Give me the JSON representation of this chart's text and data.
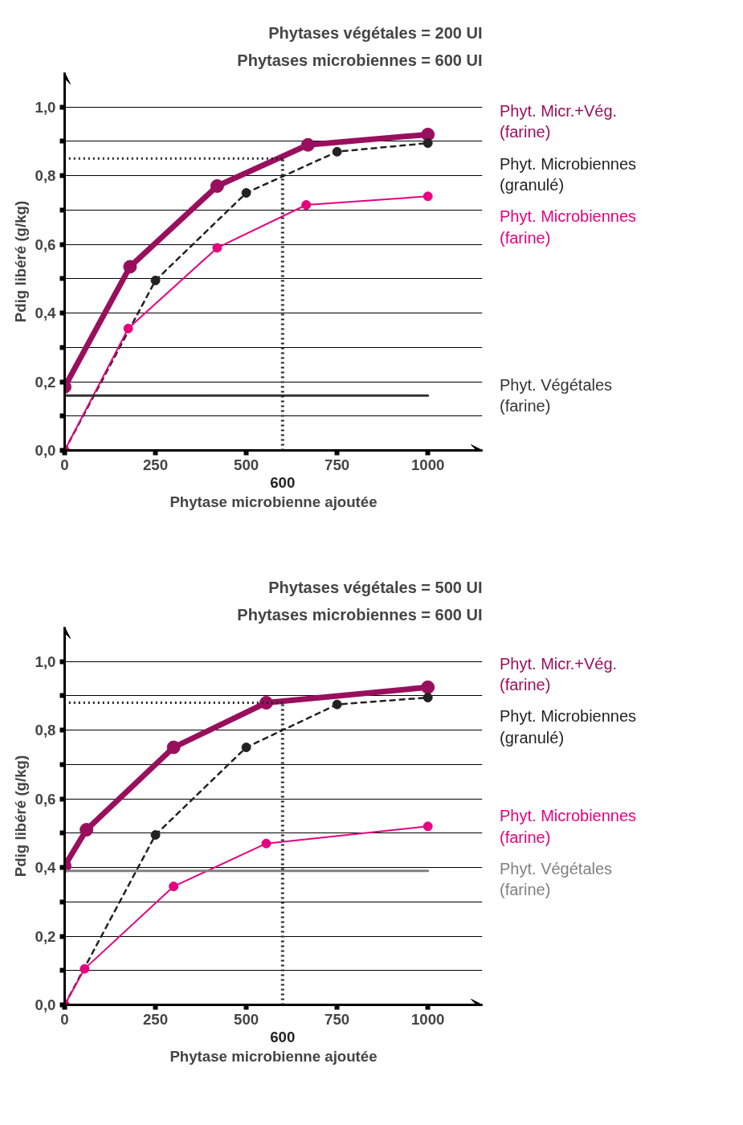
{
  "chart_data": [
    {
      "type": "line",
      "title": "Phytases végétales = 200 UI",
      "subtitle": "Phytases microbiennes = 600 UI",
      "xlabel": "Phytase microbienne ajoutée",
      "ylabel": "Pdig libéré (g/kg)",
      "xlim": [
        0,
        1150
      ],
      "ylim": [
        0,
        1.1
      ],
      "xticks": [
        0,
        {
          "value": 250,
          "label": "250"
        },
        500,
        750,
        1000
      ],
      "yticks": [
        {
          "value": 0,
          "label": "0,0"
        },
        {
          "value": 0.1,
          "label": null
        },
        {
          "value": 0.2,
          "label": "0,2"
        },
        {
          "value": 0.3,
          "label": null
        },
        {
          "value": 0.4,
          "label": "0,4"
        },
        {
          "value": 0.5,
          "label": null
        },
        {
          "value": 0.6,
          "label": "0,6"
        },
        {
          "value": 0.7,
          "label": null
        },
        {
          "value": 0.8,
          "label": "0,8"
        },
        {
          "value": 0.9,
          "label": null
        },
        {
          "value": 1.0,
          "label": "1,0"
        }
      ],
      "grid": "y",
      "legend": "right",
      "marker": "circle",
      "series": [
        {
          "name": "Phyt. Micr.+Vég. (farine)",
          "color": "#990f5d",
          "x": [
            0,
            180,
            420,
            670,
            1000
          ],
          "values": [
            0.185,
            0.535,
            0.77,
            0.89,
            0.92
          ]
        },
        {
          "name": "Phyt. Microbiennes (granulé)",
          "color": "#222222",
          "line_style": "dashed",
          "x": [
            0,
            250,
            500,
            750,
            1000
          ],
          "values": [
            0,
            0.495,
            0.75,
            0.87,
            0.895
          ]
        },
        {
          "name": "Phyt. Microbiennes (farine)",
          "color": "#e6007e",
          "x": [
            0,
            175,
            420,
            665,
            1000
          ],
          "values": [
            0,
            0.355,
            0.59,
            0.715,
            0.74
          ]
        },
        {
          "name": "Phyt. Végétales (farine)",
          "color": "#333333",
          "marker": "none",
          "x": [
            0,
            1000
          ],
          "values": [
            0.16,
            0.16
          ]
        }
      ],
      "ref_lines": [
        {
          "axis": "x",
          "value": 600,
          "label": "600",
          "line_style": "dotted",
          "color": "#222222"
        },
        {
          "axis": "y",
          "value": 0.85,
          "label": null,
          "line_style": "dotted",
          "color": "#222222"
        }
      ]
    },
    {
      "type": "line",
      "title": "Phytases végétales = 500 UI",
      "subtitle": "Phytases microbiennes = 600 UI",
      "xlabel": "Phytase microbienne ajoutée",
      "ylabel": "Pdig libéré (g/kg)",
      "xlim": [
        0,
        1150
      ],
      "ylim": [
        0,
        1.1
      ],
      "xticks": [
        0,
        250,
        500,
        750,
        1000
      ],
      "yticks": [
        {
          "value": 0,
          "label": "0,0"
        },
        {
          "value": 0.1,
          "label": null
        },
        {
          "value": 0.2,
          "label": "0,2"
        },
        {
          "value": 0.3,
          "label": null
        },
        {
          "value": 0.4,
          "label": "0,4"
        },
        {
          "value": 0.5,
          "label": null
        },
        {
          "value": 0.6,
          "label": "0,6"
        },
        {
          "value": 0.7,
          "label": null
        },
        {
          "value": 0.8,
          "label": "0,8"
        },
        {
          "value": 0.9,
          "label": null
        },
        {
          "value": 1.0,
          "label": "1,0"
        }
      ],
      "grid": "y",
      "legend": "right",
      "marker": "circle",
      "series": [
        {
          "name": "Phyt. Micr.+Vég. (farine)",
          "color": "#990f5d",
          "x": [
            0,
            60,
            300,
            555,
            1000
          ],
          "values": [
            0.405,
            0.51,
            0.75,
            0.88,
            0.925
          ]
        },
        {
          "name": "Phyt. Microbiennes (granulé)",
          "color": "#222222",
          "line_style": "dashed",
          "x": [
            0,
            250,
            500,
            750,
            1000
          ],
          "values": [
            0,
            0.495,
            0.75,
            0.875,
            0.895
          ]
        },
        {
          "name": "Phyt. Microbiennes (farine)",
          "color": "#e6007e",
          "x": [
            0,
            55,
            300,
            555,
            1000
          ],
          "values": [
            0,
            0.105,
            0.345,
            0.47,
            0.52
          ]
        },
        {
          "name": "Phyt. Végétales (farine)",
          "color": "#808080",
          "marker": "none",
          "x": [
            0,
            1000
          ],
          "values": [
            0.39,
            0.39
          ]
        }
      ],
      "ref_lines": [
        {
          "axis": "x",
          "value": 600,
          "label": "600",
          "line_style": "dotted",
          "color": "#222222"
        },
        {
          "axis": "y",
          "value": 0.88,
          "label": null,
          "line_style": "dotted",
          "color": "#222222"
        }
      ]
    }
  ]
}
